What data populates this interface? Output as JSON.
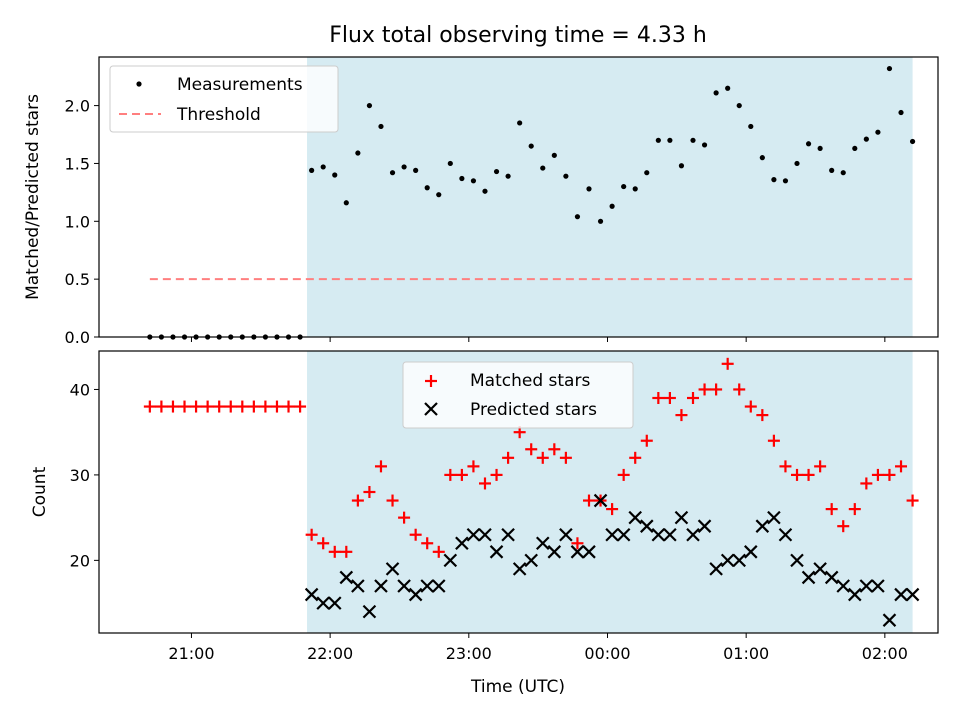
{
  "title": "Flux total observing time = 4.33 h",
  "xlabel": "Time (UTC)",
  "x_tick_labels": [
    "21:00",
    "22:00",
    "23:00",
    "00:00",
    "01:00",
    "02:00"
  ],
  "colors": {
    "shade": "#add8e6",
    "measurements": "#000000",
    "threshold": "#ff7f7f",
    "matched": "#ff0000",
    "predicted": "#000000"
  },
  "chart_data": [
    {
      "type": "scatter",
      "ylabel": "Matched/Predicted stars",
      "ylim": [
        0,
        2.42
      ],
      "y_ticks": [
        "0.0",
        "0.5",
        "1.0",
        "1.5",
        "2.0"
      ],
      "legend": {
        "placement": "top-left",
        "entries": [
          "Measurements",
          "Threshold"
        ]
      },
      "threshold": {
        "value": 0.5,
        "x_start": "20:42",
        "x_end": "02:12"
      },
      "shaded_span": [
        "21:50",
        "02:12"
      ],
      "x_unit": "time UTC",
      "series": [
        {
          "name": "Measurements",
          "points": [
            [
              "20:42",
              0.0
            ],
            [
              "20:47",
              0.0
            ],
            [
              "20:52",
              0.0
            ],
            [
              "20:57",
              0.0
            ],
            [
              "21:02",
              0.0
            ],
            [
              "21:07",
              0.0
            ],
            [
              "21:12",
              0.0
            ],
            [
              "21:17",
              0.0
            ],
            [
              "21:22",
              0.0
            ],
            [
              "21:27",
              0.0
            ],
            [
              "21:32",
              0.0
            ],
            [
              "21:37",
              0.0
            ],
            [
              "21:42",
              0.0
            ],
            [
              "21:47",
              0.0
            ],
            [
              "21:52",
              1.44
            ],
            [
              "21:57",
              1.47
            ],
            [
              "22:02",
              1.4
            ],
            [
              "22:07",
              1.16
            ],
            [
              "22:12",
              1.59
            ],
            [
              "22:17",
              2.0
            ],
            [
              "22:22",
              1.82
            ],
            [
              "22:27",
              1.42
            ],
            [
              "22:32",
              1.47
            ],
            [
              "22:37",
              1.44
            ],
            [
              "22:42",
              1.29
            ],
            [
              "22:47",
              1.23
            ],
            [
              "22:52",
              1.5
            ],
            [
              "22:57",
              1.37
            ],
            [
              "23:02",
              1.35
            ],
            [
              "23:07",
              1.26
            ],
            [
              "23:12",
              1.43
            ],
            [
              "23:17",
              1.39
            ],
            [
              "23:22",
              1.85
            ],
            [
              "23:27",
              1.65
            ],
            [
              "23:32",
              1.46
            ],
            [
              "23:37",
              1.57
            ],
            [
              "23:42",
              1.39
            ],
            [
              "23:47",
              1.04
            ],
            [
              "23:52",
              1.28
            ],
            [
              "23:57",
              1.0
            ],
            [
              "00:02",
              1.13
            ],
            [
              "00:07",
              1.3
            ],
            [
              "00:12",
              1.28
            ],
            [
              "00:17",
              1.42
            ],
            [
              "00:22",
              1.7
            ],
            [
              "00:27",
              1.7
            ],
            [
              "00:32",
              1.48
            ],
            [
              "00:37",
              1.7
            ],
            [
              "00:42",
              1.66
            ],
            [
              "00:47",
              2.11
            ],
            [
              "00:52",
              2.15
            ],
            [
              "00:57",
              2.0
            ],
            [
              "01:02",
              1.82
            ],
            [
              "01:07",
              1.55
            ],
            [
              "01:12",
              1.36
            ],
            [
              "01:17",
              1.35
            ],
            [
              "01:22",
              1.5
            ],
            [
              "01:27",
              1.67
            ],
            [
              "01:32",
              1.63
            ],
            [
              "01:37",
              1.44
            ],
            [
              "01:42",
              1.42
            ],
            [
              "01:47",
              1.63
            ],
            [
              "01:52",
              1.71
            ],
            [
              "01:57",
              1.77
            ],
            [
              "02:02",
              2.32
            ],
            [
              "02:07",
              1.94
            ],
            [
              "02:12",
              1.69
            ]
          ]
        }
      ]
    },
    {
      "type": "scatter",
      "ylabel": "Count",
      "ylim": [
        11.5,
        44.5
      ],
      "y_ticks": [
        "20",
        "30",
        "40"
      ],
      "legend": {
        "placement": "top-center",
        "entries": [
          "Matched stars",
          "Predicted stars"
        ]
      },
      "shaded_span": [
        "21:50",
        "02:12"
      ],
      "x_unit": "time UTC",
      "series": [
        {
          "name": "Matched stars",
          "points": [
            [
              "20:42",
              38
            ],
            [
              "20:47",
              38
            ],
            [
              "20:52",
              38
            ],
            [
              "20:57",
              38
            ],
            [
              "21:02",
              38
            ],
            [
              "21:07",
              38
            ],
            [
              "21:12",
              38
            ],
            [
              "21:17",
              38
            ],
            [
              "21:22",
              38
            ],
            [
              "21:27",
              38
            ],
            [
              "21:32",
              38
            ],
            [
              "21:37",
              38
            ],
            [
              "21:42",
              38
            ],
            [
              "21:47",
              38
            ],
            [
              "21:52",
              23
            ],
            [
              "21:57",
              22
            ],
            [
              "22:02",
              21
            ],
            [
              "22:07",
              21
            ],
            [
              "22:12",
              27
            ],
            [
              "22:17",
              28
            ],
            [
              "22:22",
              31
            ],
            [
              "22:27",
              27
            ],
            [
              "22:32",
              25
            ],
            [
              "22:37",
              23
            ],
            [
              "22:42",
              22
            ],
            [
              "22:47",
              21
            ],
            [
              "22:52",
              30
            ],
            [
              "22:57",
              30
            ],
            [
              "23:02",
              31
            ],
            [
              "23:07",
              29
            ],
            [
              "23:12",
              30
            ],
            [
              "23:17",
              32
            ],
            [
              "23:22",
              35
            ],
            [
              "23:27",
              33
            ],
            [
              "23:32",
              32
            ],
            [
              "23:37",
              33
            ],
            [
              "23:42",
              32
            ],
            [
              "23:47",
              22
            ],
            [
              "23:52",
              27
            ],
            [
              "23:57",
              27
            ],
            [
              "00:02",
              26
            ],
            [
              "00:07",
              30
            ],
            [
              "00:12",
              32
            ],
            [
              "00:17",
              34
            ],
            [
              "00:22",
              39
            ],
            [
              "00:27",
              39
            ],
            [
              "00:32",
              37
            ],
            [
              "00:37",
              39
            ],
            [
              "00:42",
              40
            ],
            [
              "00:47",
              40
            ],
            [
              "00:52",
              43
            ],
            [
              "00:57",
              40
            ],
            [
              "01:02",
              38
            ],
            [
              "01:07",
              37
            ],
            [
              "01:12",
              34
            ],
            [
              "01:17",
              31
            ],
            [
              "01:22",
              30
            ],
            [
              "01:27",
              30
            ],
            [
              "01:32",
              31
            ],
            [
              "01:37",
              26
            ],
            [
              "01:42",
              24
            ],
            [
              "01:47",
              26
            ],
            [
              "01:52",
              29
            ],
            [
              "01:57",
              30
            ],
            [
              "02:02",
              30
            ],
            [
              "02:07",
              31
            ],
            [
              "02:12",
              27
            ]
          ]
        },
        {
          "name": "Predicted stars",
          "points": [
            [
              "21:52",
              16
            ],
            [
              "21:57",
              15
            ],
            [
              "22:02",
              15
            ],
            [
              "22:07",
              18
            ],
            [
              "22:12",
              17
            ],
            [
              "22:17",
              14
            ],
            [
              "22:22",
              17
            ],
            [
              "22:27",
              19
            ],
            [
              "22:32",
              17
            ],
            [
              "22:37",
              16
            ],
            [
              "22:42",
              17
            ],
            [
              "22:47",
              17
            ],
            [
              "22:52",
              20
            ],
            [
              "22:57",
              22
            ],
            [
              "23:02",
              23
            ],
            [
              "23:07",
              23
            ],
            [
              "23:12",
              21
            ],
            [
              "23:17",
              23
            ],
            [
              "23:22",
              19
            ],
            [
              "23:27",
              20
            ],
            [
              "23:32",
              22
            ],
            [
              "23:37",
              21
            ],
            [
              "23:42",
              23
            ],
            [
              "23:47",
              21
            ],
            [
              "23:52",
              21
            ],
            [
              "23:57",
              27
            ],
            [
              "00:02",
              23
            ],
            [
              "00:07",
              23
            ],
            [
              "00:12",
              25
            ],
            [
              "00:17",
              24
            ],
            [
              "00:22",
              23
            ],
            [
              "00:27",
              23
            ],
            [
              "00:32",
              25
            ],
            [
              "00:37",
              23
            ],
            [
              "00:42",
              24
            ],
            [
              "00:47",
              19
            ],
            [
              "00:52",
              20
            ],
            [
              "00:57",
              20
            ],
            [
              "01:02",
              21
            ],
            [
              "01:07",
              24
            ],
            [
              "01:12",
              25
            ],
            [
              "01:17",
              23
            ],
            [
              "01:22",
              20
            ],
            [
              "01:27",
              18
            ],
            [
              "01:32",
              19
            ],
            [
              "01:37",
              18
            ],
            [
              "01:42",
              17
            ],
            [
              "01:47",
              16
            ],
            [
              "01:52",
              17
            ],
            [
              "01:57",
              17
            ],
            [
              "02:02",
              13
            ],
            [
              "02:07",
              16
            ],
            [
              "02:12",
              16
            ]
          ]
        }
      ]
    }
  ]
}
